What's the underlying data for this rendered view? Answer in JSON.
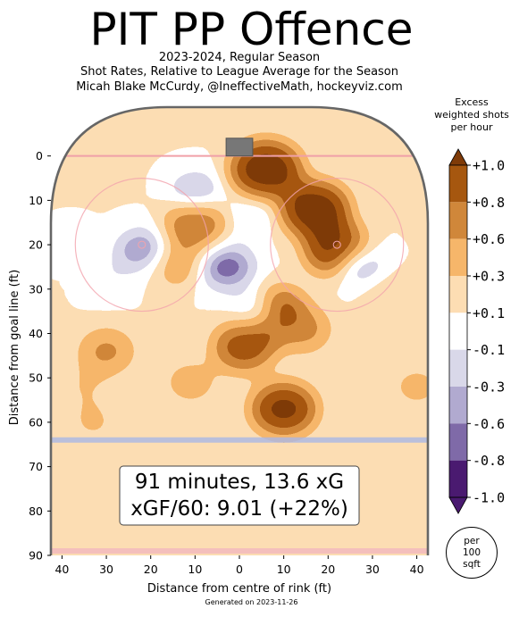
{
  "header": {
    "title": "PIT PP Offence",
    "subtitle_1": "2023-2024, Regular Season",
    "subtitle_2": "Shot Rates, Relative to League Average for the Season",
    "subtitle_3": "Micah Blake McCurdy, @IneffectiveMath, hockeyviz.com"
  },
  "summary": {
    "line_1": "91 minutes, 13.6 xG",
    "line_2": "xGF/60: 9.01 (+22%)"
  },
  "colorbar": {
    "title_1": "Excess",
    "title_2": "weighted shots",
    "title_3": "per hour",
    "levels": [
      {
        "label": "+1.0",
        "color": "#7f3b08"
      },
      {
        "label": "+0.8",
        "color": "#a6570f"
      },
      {
        "label": "+0.6",
        "color": "#d0873a"
      },
      {
        "label": "+0.3",
        "color": "#f6b66a"
      },
      {
        "label": "+0.1",
        "color": "#fdddb3"
      },
      {
        "label": "-0.1",
        "color": "#ffffff"
      },
      {
        "label": "-0.3",
        "color": "#d9d8e9"
      },
      {
        "label": "-0.6",
        "color": "#b1aad0"
      },
      {
        "label": "-0.8",
        "color": "#7f6aa8"
      },
      {
        "label": "-1.0",
        "color": "#4a1a70"
      }
    ],
    "unit_1": "per",
    "unit_2": "100",
    "unit_3": "sqft"
  },
  "footer": "Generated on 2023-11-26",
  "chart_data": {
    "type": "heatmap",
    "title": "PIT PP Offence",
    "xlabel": "Distance from centre of rink (ft)",
    "ylabel": "Distance from goal line (ft)",
    "xlim": [
      -42.5,
      42.5
    ],
    "ylim": [
      90,
      -11
    ],
    "x_ticks": [
      -40,
      -30,
      -20,
      -10,
      0,
      10,
      20,
      30,
      40
    ],
    "x_tick_labels": [
      "40",
      "30",
      "20",
      "10",
      "0",
      "10",
      "20",
      "30",
      "40"
    ],
    "y_ticks": [
      0,
      10,
      20,
      30,
      40,
      50,
      60,
      70,
      80,
      90
    ],
    "y_tick_labels": [
      "0",
      "10",
      "20",
      "30",
      "40",
      "50",
      "60",
      "70",
      "80",
      "90"
    ],
    "contour_levels": [
      -1.0,
      -0.8,
      -0.6,
      -0.3,
      -0.1,
      0.1,
      0.3,
      0.6,
      0.8,
      1.0
    ],
    "hotspots": [
      {
        "x": 6,
        "y": 3,
        "excess": 1.3
      },
      {
        "x": 17,
        "y": 12,
        "excess": 1.2
      },
      {
        "x": 22,
        "y": 21,
        "excess": 1.0
      },
      {
        "x": -10,
        "y": 15,
        "excess": 0.75
      },
      {
        "x": -14,
        "y": 24,
        "excess": 0.55
      },
      {
        "x": 8,
        "y": 36,
        "excess": 1.1
      },
      {
        "x": 1,
        "y": 43,
        "excess": 0.85
      },
      {
        "x": 14,
        "y": 39,
        "excess": 0.6
      },
      {
        "x": 10,
        "y": 57,
        "excess": 1.0
      },
      {
        "x": -11,
        "y": 51,
        "excess": 0.4
      },
      {
        "x": -30,
        "y": 44,
        "excess": 0.55
      },
      {
        "x": -35,
        "y": 52,
        "excess": 0.25
      },
      {
        "x": -33,
        "y": 60,
        "excess": 0.3
      },
      {
        "x": 40,
        "y": 52,
        "excess": 0.35
      },
      {
        "x": 33,
        "y": 30,
        "excess": 0.25
      },
      {
        "x": -3,
        "y": 25,
        "excess": -1.2
      },
      {
        "x": -22,
        "y": 21,
        "excess": -0.85
      },
      {
        "x": -10,
        "y": 8,
        "excess": -0.65
      },
      {
        "x": 28,
        "y": 25,
        "excess": -0.55
      },
      {
        "x": -30,
        "y": 28,
        "excess": -0.25
      },
      {
        "x": -38,
        "y": 20,
        "excess": -0.2
      },
      {
        "x": 3,
        "y": 13,
        "excess": -0.35
      },
      {
        "x": 3,
        "y": 35,
        "excess": -0.25
      }
    ]
  }
}
